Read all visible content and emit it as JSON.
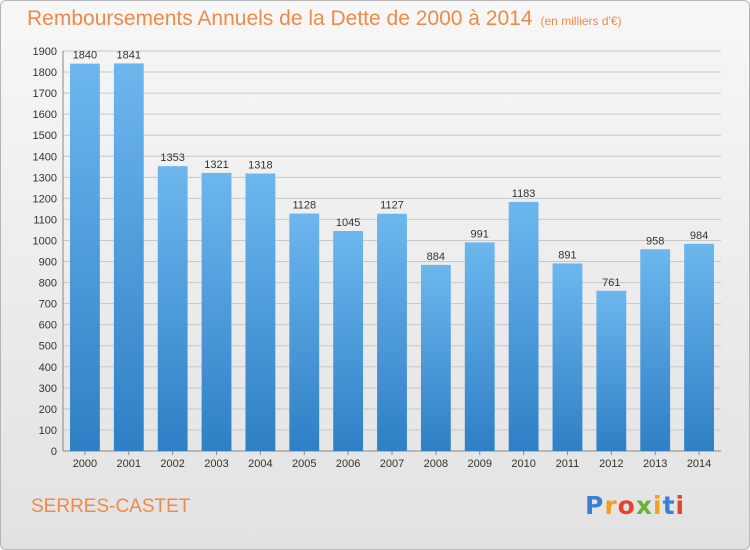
{
  "title": "Remboursements Annuels de la Dette de 2000 à 2014",
  "unit_note": "(en milliers d'€)",
  "commune": "SERRES-CASTET",
  "logo_text": "Proxiti",
  "colors": {
    "title": "#f08a46",
    "bar_light": "#6db7ee",
    "bar_dark": "#2f7fc6",
    "grid": "#c8c8c8"
  },
  "chart_data": {
    "type": "bar",
    "title": "Remboursements Annuels de la Dette de 2000 à 2014",
    "subtitle": "(en milliers d'€)",
    "categories": [
      "2000",
      "2001",
      "2002",
      "2003",
      "2004",
      "2005",
      "2006",
      "2007",
      "2008",
      "2009",
      "2010",
      "2011",
      "2012",
      "2013",
      "2014"
    ],
    "values": [
      1840,
      1841,
      1353,
      1321,
      1318,
      1128,
      1045,
      1127,
      884,
      991,
      1183,
      891,
      761,
      958,
      984
    ],
    "ylim": [
      0,
      1900
    ],
    "ytick_step": 100,
    "grid": true,
    "legend": "none"
  }
}
